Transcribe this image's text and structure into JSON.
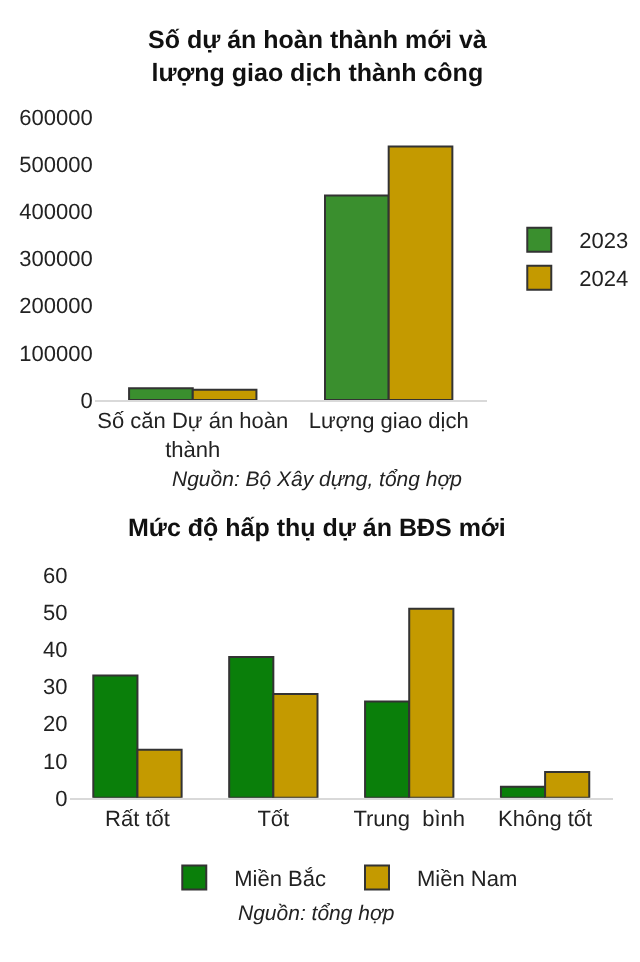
{
  "chart_data": [
    {
      "type": "bar",
      "title": "Số dự án hoàn thành mới và\nlượng giao dịch thành công",
      "categories": [
        "Số căn Dự án hoàn\nthành",
        "Lượng giao dịch"
      ],
      "series": [
        {
          "name": "2023",
          "color": "#3a8f2e",
          "values": [
            25000,
            434000
          ]
        },
        {
          "name": "2024",
          "color": "#c49a00",
          "values": [
            22000,
            538000
          ]
        }
      ],
      "ylim": [
        0,
        600000
      ],
      "yticks": [
        0,
        100000,
        200000,
        300000,
        400000,
        500000,
        600000
      ],
      "legend": "right",
      "annotations": [
        "Nguồn: Bộ Xây dựng, tổng hợp"
      ]
    },
    {
      "type": "bar",
      "title": "Mức độ hấp thụ dự án BĐS mới",
      "categories": [
        "Rất tốt",
        "Tốt",
        "Trung  bình",
        "Không tốt"
      ],
      "series": [
        {
          "name": "Miền Bắc",
          "color": "#0a7f0a",
          "values": [
            33,
            38,
            26,
            3
          ]
        },
        {
          "name": "Miền Nam",
          "color": "#c49a00",
          "values": [
            13,
            28,
            51,
            7
          ]
        }
      ],
      "ylim": [
        0,
        60
      ],
      "yticks": [
        0,
        10,
        20,
        30,
        40,
        50,
        60
      ],
      "legend": "bottom",
      "annotations": [
        "Nguồn: tổng hợp"
      ]
    }
  ]
}
